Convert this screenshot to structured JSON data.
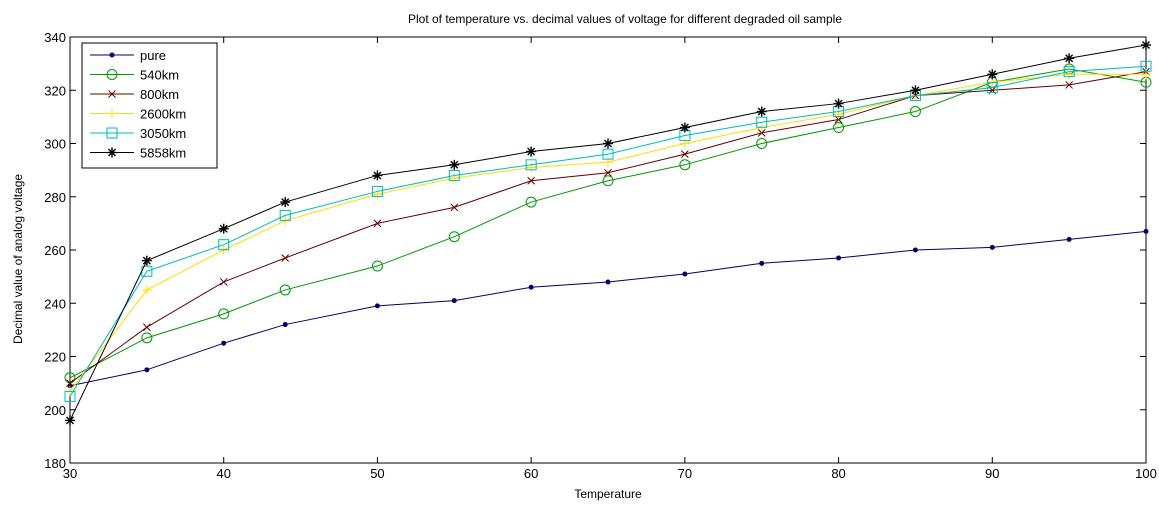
{
  "chart_data": {
    "type": "line",
    "title": "Plot of temperature vs. decimal values of voltage for different degraded oil sample",
    "xlabel": "Temperature",
    "ylabel": "Decimal value of analog voltage",
    "xlim": [
      30,
      100
    ],
    "ylim": [
      180,
      340
    ],
    "xticks": [
      30,
      40,
      50,
      60,
      70,
      80,
      90,
      100
    ],
    "yticks": [
      180,
      200,
      220,
      240,
      260,
      280,
      300,
      320,
      340
    ],
    "grid": false,
    "legend_position": "top-left",
    "x": [
      30,
      35,
      40,
      44,
      50,
      55,
      60,
      65,
      70,
      75,
      80,
      85,
      90,
      95,
      100
    ],
    "series": [
      {
        "name": "pure",
        "color": "#000066",
        "marker": "dot",
        "values": [
          209,
          215,
          225,
          232,
          239,
          241,
          246,
          248,
          251,
          255,
          257,
          260,
          261,
          264,
          267
        ]
      },
      {
        "name": "540km",
        "color": "#009900",
        "marker": "circle",
        "values": [
          212,
          227,
          236,
          245,
          254,
          265,
          278,
          286,
          292,
          300,
          306,
          312,
          323,
          328,
          323
        ]
      },
      {
        "name": "800km",
        "color": "#660000",
        "marker": "x",
        "values": [
          210,
          231,
          248,
          257,
          270,
          276,
          286,
          289,
          296,
          304,
          309,
          318,
          320,
          322,
          327
        ]
      },
      {
        "name": "2600km",
        "color": "#ffdd00",
        "marker": "plus",
        "values": [
          207,
          245,
          260,
          271,
          281,
          287,
          291,
          293,
          300,
          306,
          311,
          318,
          323,
          326,
          326
        ]
      },
      {
        "name": "3050km",
        "color": "#00bbbb",
        "marker": "square",
        "values": [
          205,
          252,
          262,
          273,
          282,
          288,
          292,
          296,
          303,
          308,
          312,
          318,
          321,
          327,
          329
        ]
      },
      {
        "name": "5858km",
        "color": "#000000",
        "marker": "star",
        "values": [
          196,
          256,
          268,
          278,
          288,
          292,
          297,
          300,
          306,
          312,
          315,
          320,
          326,
          332,
          337
        ]
      }
    ]
  }
}
